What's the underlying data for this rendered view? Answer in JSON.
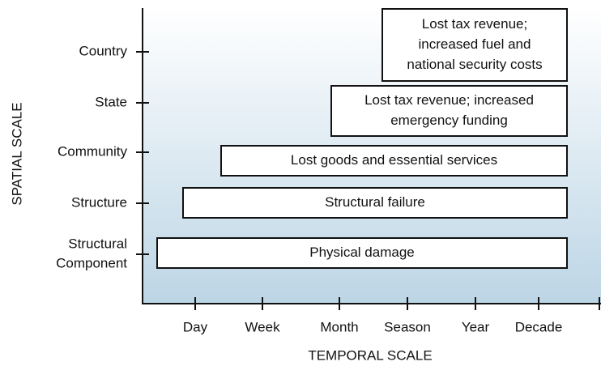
{
  "axes": {
    "y_title": "SPATIAL SCALE",
    "x_title": "TEMPORAL SCALE"
  },
  "y_labels": [
    [
      "Country"
    ],
    [
      "State"
    ],
    [
      "Community"
    ],
    [
      "Structure"
    ],
    [
      "Structural",
      "Component"
    ]
  ],
  "x_labels": [
    "Day",
    "Week",
    "Month",
    "Season",
    "Year",
    "Decade"
  ],
  "boxes": [
    [
      "Lost tax revenue;",
      "increased fuel and",
      "national security costs"
    ],
    [
      "Lost tax revenue; increased",
      "emergency funding"
    ],
    [
      "Lost goods and essential services"
    ],
    [
      "Structural failure"
    ],
    [
      "Physical damage"
    ]
  ]
}
